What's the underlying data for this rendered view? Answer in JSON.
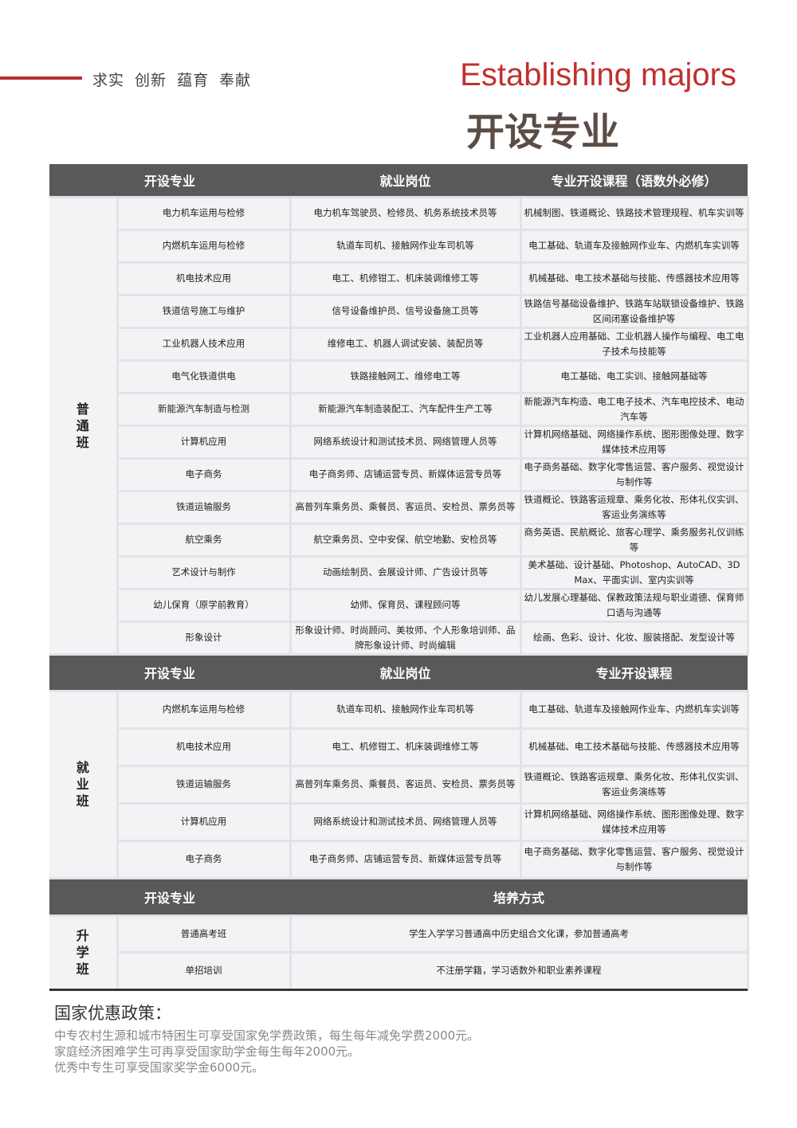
{
  "header": {
    "motto": "求实  创新  蕴育  奉献",
    "title_en": "Establishing majors",
    "title_cn": "开设专业"
  },
  "sections": [
    {
      "headers": [
        "开设专业",
        "就业岗位",
        "专业开设课程（语数外必修）"
      ],
      "group": "普\n通\n班",
      "rows": [
        [
          "电力机车运用与检修",
          "电力机车驾驶员、检修员、机务系统技术员等",
          "机械制图、铁道概论、铁路技术管理规程、机车实训等"
        ],
        [
          "内燃机车运用与检修",
          "轨道车司机、接触网作业车司机等",
          "电工基础、轨道车及接触网作业车、内燃机车实训等"
        ],
        [
          "机电技术应用",
          "电工、机修钳工、机床装调维修工等",
          "机械基础、电工技术基础与技能、传感器技术应用等"
        ],
        [
          "铁道信号施工与维护",
          "信号设备维护员、信号设备施工员等",
          "铁路信号基础设备维护、铁路车站联锁设备维护、铁路区间闭塞设备维护等"
        ],
        [
          "工业机器人技术应用",
          "维修电工、机器人调试安装、装配员等",
          "工业机器人应用基础、工业机器人操作与编程、电工电子技术与技能等"
        ],
        [
          "电气化铁道供电",
          "铁路接触网工、维修电工等",
          "电工基础、电工实训、接触网基础等"
        ],
        [
          "新能源汽车制造与检测",
          "新能源汽车制造装配工、汽车配件生产工等",
          "新能源汽车构造、电工电子技术、汽车电控技术、电动汽车等"
        ],
        [
          "计算机应用",
          "网络系统设计和测试技术员、网络管理人员等",
          "计算机网络基础、网络操作系统、图形图像处理、数字媒体技术应用等"
        ],
        [
          "电子商务",
          "电子商务师、店铺运营专员、新媒体运营专员等",
          "电子商务基础、数字化零售运营、客户服务、视觉设计与制作等"
        ],
        [
          "铁道运输服务",
          "高普列车乘务员、乘餐员、客运员、安检员、票务员等",
          "铁道概论、铁路客运规章、乘务化妆、形体礼仪实训、客运业务演练等"
        ],
        [
          "航空乘务",
          "航空乘务员、空中安保、航空地勤、安检员等",
          "商务英语、民航概论、旅客心理学、乘务服务礼仪训练等"
        ],
        [
          "艺术设计与制作",
          "动画绘制员、会展设计师、广告设计员等",
          "美术基础、设计基础、Photoshop、AutoCAD、3D Max、平面实训、室内实训等"
        ],
        [
          "幼儿保育（原学前教育）",
          "幼师、保育员、课程顾问等",
          "幼儿发展心理基础、保教政策法规与职业道德、保育师口语与沟通等"
        ],
        [
          "形象设计",
          "形象设计师、时尚顾问、美妆师、个人形象培训师、品牌形象设计师、时尚编辑",
          "绘画、色彩、设计、化妆、服装搭配、发型设计等"
        ]
      ]
    },
    {
      "headers": [
        "开设专业",
        "就业岗位",
        "专业开设课程"
      ],
      "group": "就\n业\n班",
      "rows": [
        [
          "内燃机车运用与检修",
          "轨道车司机、接触网作业车司机等",
          "电工基础、轨道车及接触网作业车、内燃机车实训等"
        ],
        [
          "机电技术应用",
          "电工、机修钳工、机床装调维修工等",
          "机械基础、电工技术基础与技能、传感器技术应用等"
        ],
        [
          "铁道运输服务",
          "高普列车乘务员、乘餐员、客运员、安检员、票务员等",
          "铁道概论、铁路客运规章、乘务化妆、形体礼仪实训、客运业务演练等"
        ],
        [
          "计算机应用",
          "网络系统设计和测试技术员、网络管理人员等",
          "计算机网络基础、网络操作系统、图形图像处理、数字媒体技术应用等"
        ],
        [
          "电子商务",
          "电子商务师、店铺运营专员、新媒体运营专员等",
          "电子商务基础、数字化零售运营、客户服务、视觉设计与制作等"
        ]
      ]
    },
    {
      "headers": [
        "开设专业",
        "培养方式"
      ],
      "group": "升\n学\n班",
      "rows": [
        [
          "普通高考班",
          "学生入学学习普通高中历史组合文化课，参加普通高考"
        ],
        [
          "单招培训",
          "不注册学籍，学习语数外和职业素养课程"
        ]
      ]
    }
  ],
  "policy": {
    "title": "国家优惠政策：",
    "lines": [
      "中专农村生源和城市特困生可享受国家免学费政策，每生每年减免学费2000元。",
      "家庭经济困难学生可再享受国家助学金每生每年2000元。",
      "优秀中专生可享受国家奖学金6000元。"
    ]
  }
}
